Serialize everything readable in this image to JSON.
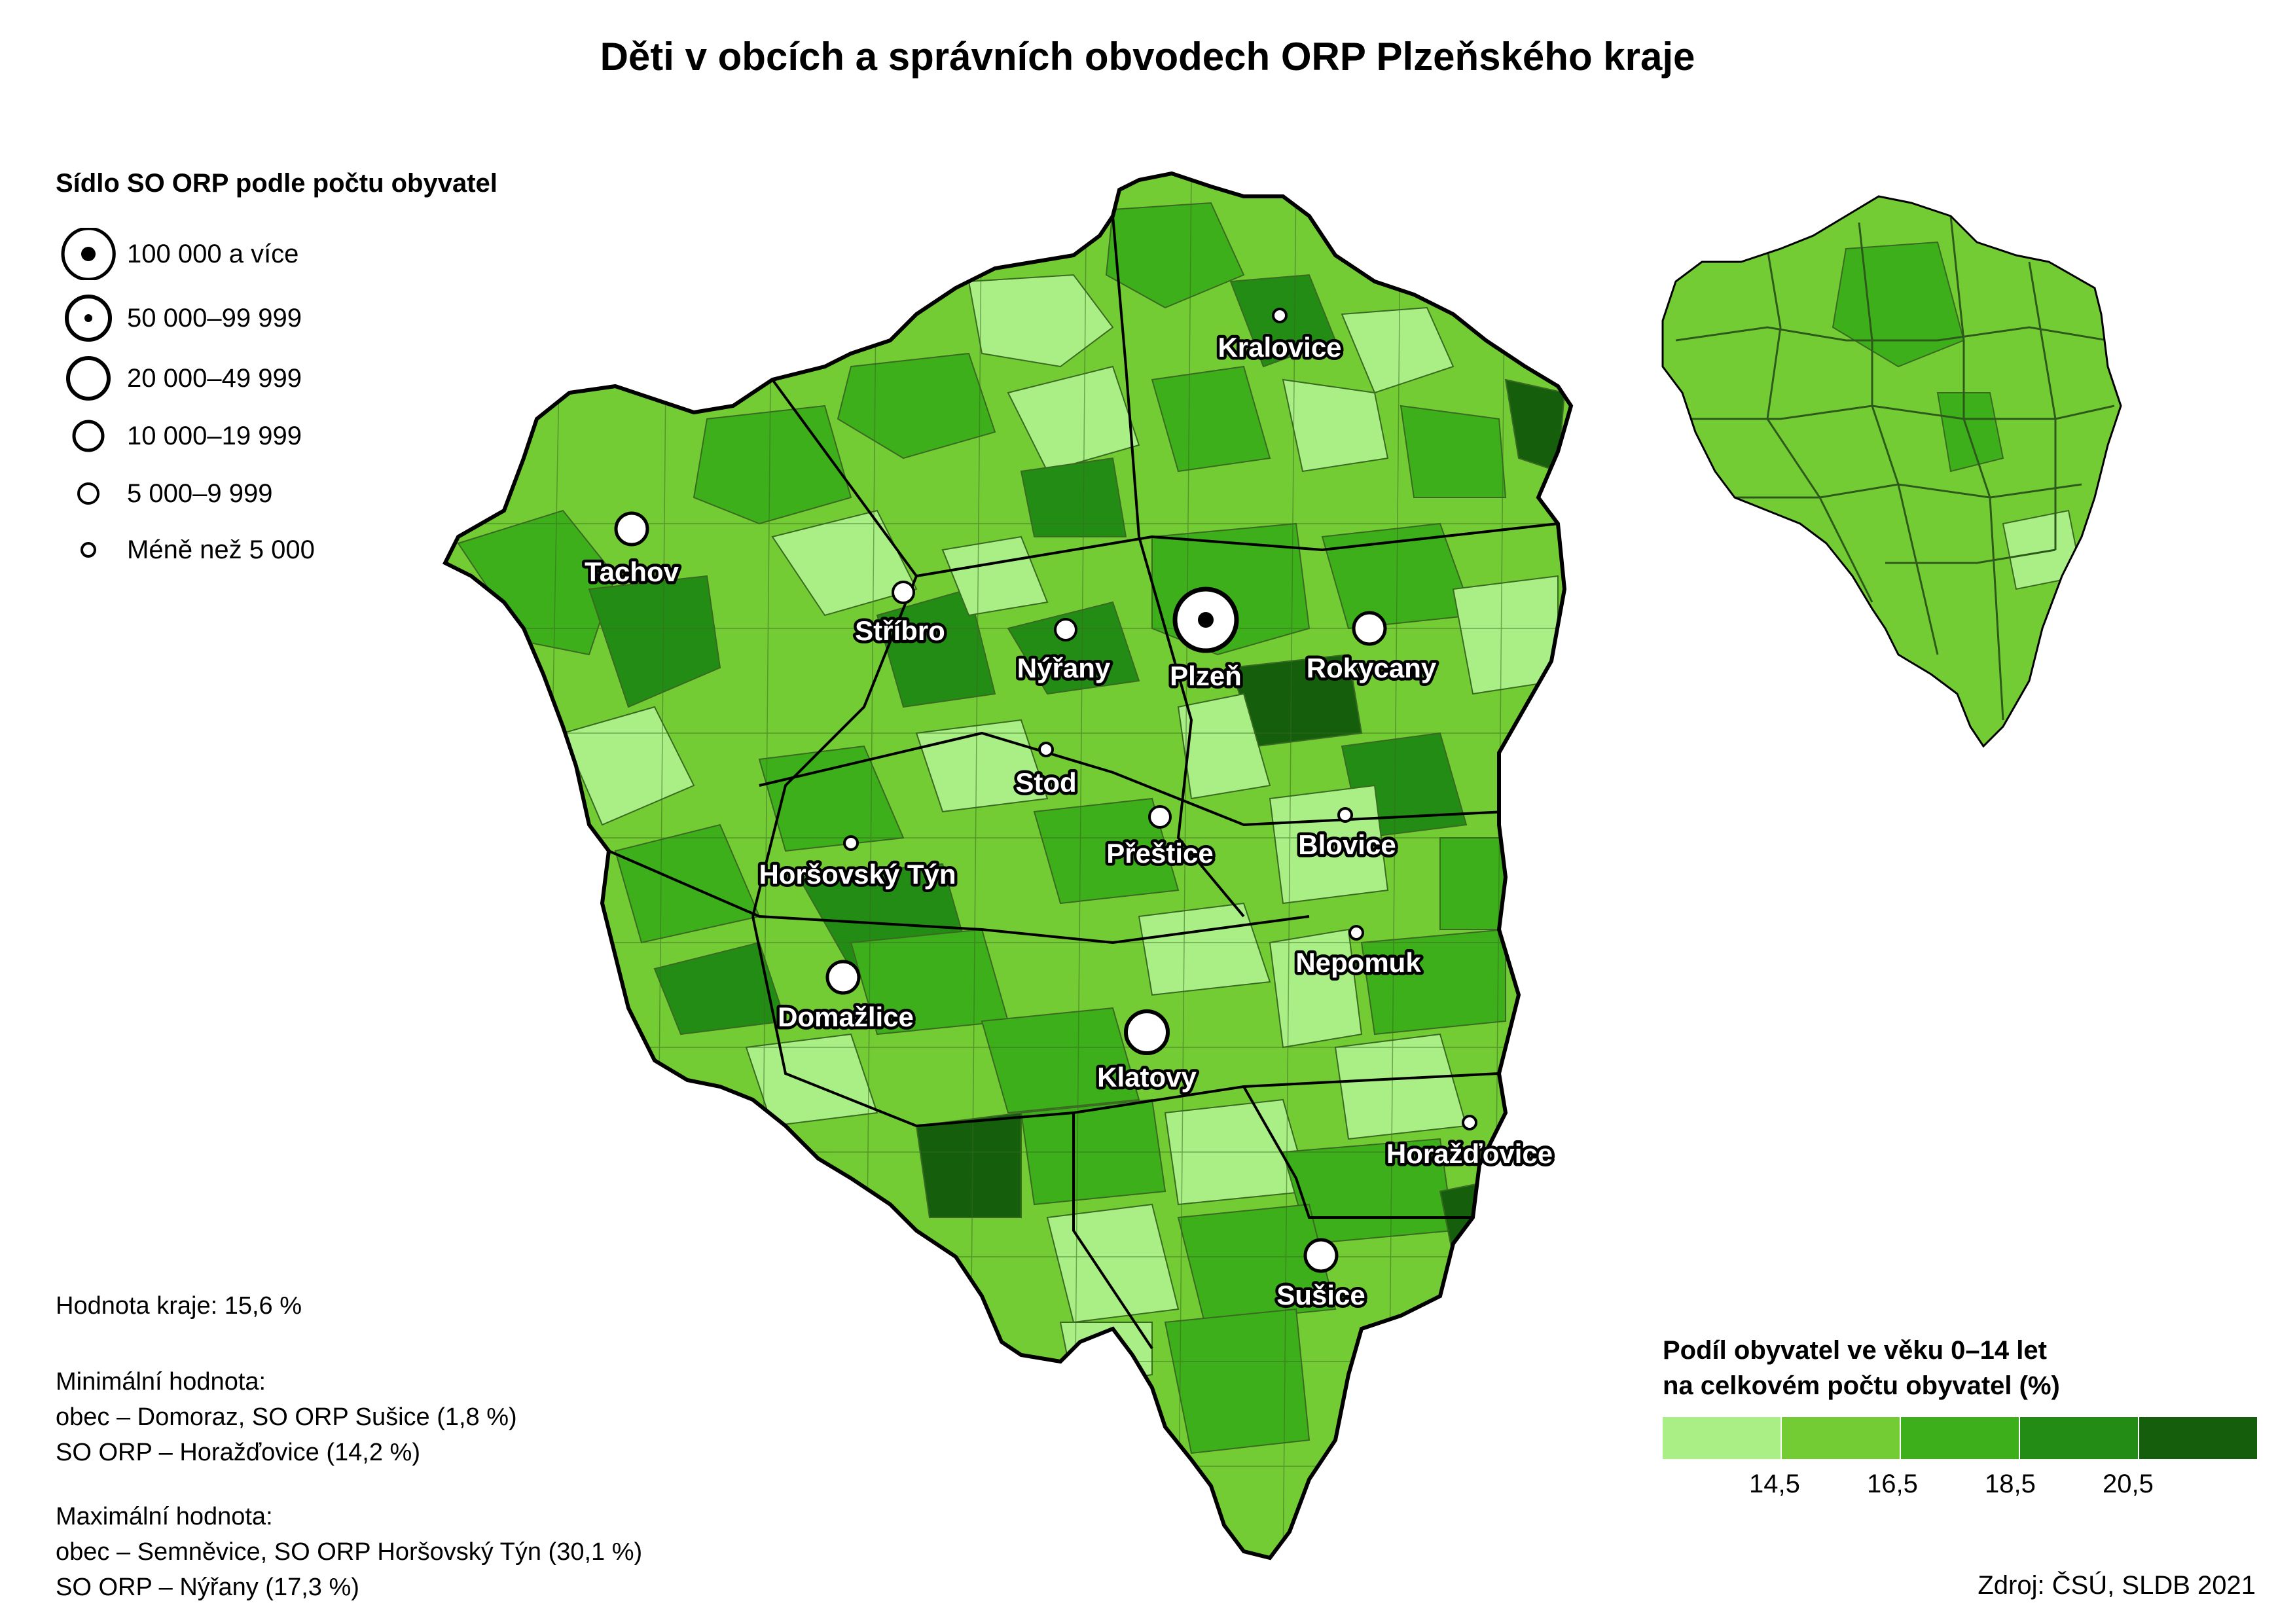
{
  "title": "Děti v obcích a správních obvodech ORP Plzeňského kraje",
  "size_legend": {
    "title": "Sídlo SO ORP podle počtu obyvatel",
    "items": [
      {
        "label": "100 000 a více",
        "kind": "dot-large"
      },
      {
        "label": "50 000–99 999",
        "kind": "dot-small"
      },
      {
        "label": "20 000–49 999",
        "kind": "circle-xl"
      },
      {
        "label": "10 000–19 999",
        "kind": "circle-l"
      },
      {
        "label": "5 000–9 999",
        "kind": "circle-m"
      },
      {
        "label": "Méně než 5 000",
        "kind": "circle-s"
      }
    ]
  },
  "stats": {
    "region": "Hodnota kraje: 15,6 %",
    "min_title": "Minimální hodnota:",
    "min_obec": "obec – Domoraz, SO ORP Sušice (1,8 %)",
    "min_orp": "SO ORP – Horažďovice (14,2 %)",
    "max_title": "Maximální hodnota:",
    "max_obec": "obec – Semněvice, SO ORP Horšovský Týn (30,1 %)",
    "max_orp": "SO ORP – Nýřany (17,3 %)"
  },
  "classes": {
    "title_line1": "Podíl obyvatel ve věku 0–14 let",
    "title_line2": "na celkovém počtu obyvatel (%)",
    "colors": [
      "#a9ef85",
      "#74cc35",
      "#3caf1a",
      "#238c15",
      "#145e0c"
    ],
    "breaks": [
      "14,5",
      "16,5",
      "18,5",
      "20,5"
    ]
  },
  "source": "Zdroj: ČSÚ, SLDB 2021",
  "cities": [
    {
      "name": "Kralovice",
      "size": "circle-s"
    },
    {
      "name": "Tachov",
      "size": "circle-l"
    },
    {
      "name": "Stříbro",
      "size": "circle-m"
    },
    {
      "name": "Nýřany",
      "size": "circle-m"
    },
    {
      "name": "Plzeň",
      "size": "dot-large"
    },
    {
      "name": "Rokycany",
      "size": "circle-l"
    },
    {
      "name": "Stod",
      "size": "circle-s"
    },
    {
      "name": "Přeštice",
      "size": "circle-m"
    },
    {
      "name": "Blovice",
      "size": "circle-s"
    },
    {
      "name": "Horšovský Týn",
      "size": "circle-s"
    },
    {
      "name": "Nepomuk",
      "size": "circle-s"
    },
    {
      "name": "Domažlice",
      "size": "circle-l"
    },
    {
      "name": "Klatovy",
      "size": "circle-xl"
    },
    {
      "name": "Horažďovice",
      "size": "circle-s"
    },
    {
      "name": "Sušice",
      "size": "circle-l"
    }
  ]
}
